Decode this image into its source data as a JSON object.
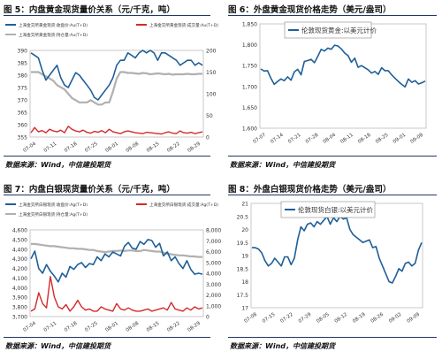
{
  "panels": [
    {
      "title": "图 5：内盘黄金现货量价关系（元/千克，吨）",
      "source": "数据来源：Wind，中信建投期货",
      "chart_data": {
        "type": "line",
        "xlabels": [
          "07-04",
          "07-11",
          "07-18",
          "07-25",
          "08-01",
          "08-08",
          "08-15",
          "08-22",
          "08-29"
        ],
        "y_ticks": [
          "390",
          "385",
          "380",
          "375",
          "370",
          "365",
          "360",
          "355"
        ],
        "y2_ticks": [
          "200",
          "150",
          "100",
          "50",
          "0"
        ],
        "ylim": [
          355,
          390
        ],
        "y2lim": [
          0,
          200
        ],
        "legend": [
          {
            "name": "上海金交所黄金现货:收盘价:Au(T+D)",
            "color": "#1f5f99"
          },
          {
            "name": "上海金交所黄金现货:成交量:Au(T+D)",
            "color": "#d42a2a"
          },
          {
            "name": "上海金交所黄金现货:持仓量:Au(T+D)",
            "color": "#b0b0b0"
          }
        ],
        "series": [
          {
            "name": "上海金交所黄金现货:收盘价:Au(T+D)",
            "axis": "left",
            "color": "#1f5f99",
            "width": 1.6,
            "values": [
              389,
              388,
              387,
              382,
              378,
              380,
              382,
              384,
              379,
              376,
              375,
              378,
              381,
              380,
              378,
              376,
              374,
              371,
              370,
              372,
              374,
              376,
              379,
              384,
              386,
              386,
              389,
              388,
              387,
              389,
              390,
              389,
              390,
              389,
              386,
              389,
              389,
              388,
              387,
              386,
              384,
              385,
              386,
              386,
              384,
              385,
              384
            ]
          },
          {
            "name": "上海金交所黄金现货:成交量:Au(T+D)",
            "axis": "right",
            "color": "#d42a2a",
            "width": 1.4,
            "values": [
              10,
              22,
              12,
              15,
              10,
              18,
              14,
              12,
              16,
              10,
              25,
              18,
              14,
              12,
              16,
              11,
              9,
              13,
              11,
              15,
              10,
              18,
              12,
              10,
              8,
              12,
              14,
              12,
              10,
              9,
              8,
              11,
              10,
              9,
              8,
              7,
              10,
              12,
              9,
              8,
              14,
              10,
              9,
              11,
              8,
              10,
              12
            ]
          },
          {
            "name": "上海金交所黄金现货:持仓量:Au(T+D)",
            "axis": "right",
            "color": "#b0b0b0",
            "width": 2.2,
            "values": [
              150,
              150,
              150,
              145,
              140,
              135,
              130,
              120,
              115,
              110,
              100,
              90,
              85,
              80,
              80,
              80,
              85,
              80,
              75,
              75,
              80,
              80,
              105,
              135,
              150,
              150,
              148,
              148,
              147,
              146,
              148,
              147,
              145,
              146,
              147,
              146,
              145,
              146,
              144,
              145,
              145,
              145,
              146,
              145,
              145,
              146,
              146
            ]
          }
        ]
      }
    },
    {
      "title": "图 6：外盘黄金现货价格走势（美元/盎司）",
      "source": "数据来源：Wind，中信建投期货",
      "chart_data": {
        "type": "line",
        "xlabels": [
          "07-07",
          "07-14",
          "07-21",
          "07-28",
          "08-04",
          "08-11",
          "08-18",
          "08-25",
          "09-01",
          "09-08"
        ],
        "y_ticks": [
          "1,850",
          "1,800",
          "1,750",
          "1,700",
          "1,650",
          "1,600"
        ],
        "ylim": [
          1600,
          1850
        ],
        "legend": [
          {
            "name": "伦敦现货黄金:以美元计价",
            "color": "#1f5f99"
          }
        ],
        "series": [
          {
            "name": "伦敦现货黄金:以美元计价",
            "axis": "left",
            "color": "#1f5f99",
            "width": 1.6,
            "values": [
              1742,
              1737,
              1738,
              1720,
              1705,
              1712,
              1718,
              1714,
              1723,
              1715,
              1735,
              1741,
              1728,
              1760,
              1762,
              1765,
              1757,
              1772,
              1789,
              1785,
              1792,
              1789,
              1799,
              1797,
              1790,
              1780,
              1774,
              1758,
              1768,
              1746,
              1750,
              1745,
              1740,
              1732,
              1736,
              1729,
              1745,
              1738,
              1738,
              1728,
              1720,
              1712,
              1705,
              1699,
              1718,
              1710,
              1714,
              1706,
              1709,
              1713
            ]
          }
        ]
      }
    },
    {
      "title": "图 7：内盘白银现货量价关系（元/千克，吨）",
      "source": "数据来源：Wind，中信建投期货",
      "chart_data": {
        "type": "line",
        "xlabels": [
          "07-04",
          "07-11",
          "07-18",
          "07-25",
          "08-01",
          "08-08",
          "08-15",
          "08-22",
          "08-29"
        ],
        "y_ticks": [
          "4,600",
          "4,500",
          "4,400",
          "4,300",
          "4,200",
          "4,100",
          "4,000",
          "3,900",
          "3,800",
          "3,700"
        ],
        "y2_ticks": [
          "8,000",
          "7,000",
          "6,000",
          "5,000",
          "4,000",
          "3,000",
          "2,000",
          "1,000",
          "0"
        ],
        "ylim": [
          3700,
          4600
        ],
        "y2lim": [
          0,
          8000
        ],
        "legend": [
          {
            "name": "上海金交所白银现货:收盘价:Ag(T+D)",
            "color": "#1f5f99"
          },
          {
            "name": "上海金交所白银现货:成交量:Ag(T+D)",
            "color": "#d42a2a"
          },
          {
            "name": "上海金交所白银现货:持仓量:Ag(T+D)",
            "color": "#b0b0b0"
          }
        ],
        "series": [
          {
            "name": "上海金交所白银现货:收盘价:Ag(T+D)",
            "axis": "left",
            "color": "#1f5f99",
            "width": 1.6,
            "values": [
              4300,
              4380,
              4200,
              4150,
              4240,
              4170,
              4120,
              4060,
              4150,
              4110,
              4220,
              4190,
              4240,
              4260,
              4210,
              4250,
              4240,
              4320,
              4280,
              4350,
              4320,
              4370,
              4350,
              4330,
              4430,
              4470,
              4410,
              4400,
              4480,
              4450,
              4500,
              4490,
              4420,
              4460,
              4330,
              4370,
              4280,
              4320,
              4250,
              4200,
              4280,
              4190,
              4140,
              4150,
              4140
            ]
          },
          {
            "name": "上海金交所白银现货:成交量:Ag(T+D)",
            "axis": "right",
            "color": "#d42a2a",
            "width": 1.4,
            "values": [
              500,
              700,
              2200,
              1200,
              800,
              3700,
              1800,
              900,
              700,
              1100,
              500,
              900,
              1500,
              900,
              600,
              700,
              500,
              500,
              900,
              700,
              600,
              500,
              1200,
              700,
              600,
              800,
              600,
              500,
              500,
              600,
              700,
              500,
              600,
              700,
              800,
              600,
              1300,
              700,
              600,
              500,
              800,
              600,
              900,
              700,
              800
            ]
          },
          {
            "name": "上海金交所白银现货:持仓量:Ag(T+D)",
            "axis": "right",
            "color": "#b0b0b0",
            "width": 2.2,
            "values": [
              6700,
              6700,
              6650,
              6600,
              6550,
              6500,
              6500,
              6450,
              6400,
              6350,
              6300,
              6300,
              6250,
              6250,
              6200,
              6150,
              6150,
              6050,
              6000,
              5950,
              6000,
              6050,
              6050,
              6100,
              6050,
              6100,
              6100,
              6050,
              6050,
              6150,
              6100,
              6050,
              6000,
              6000,
              5900,
              5800,
              5750,
              5700,
              5650,
              5650,
              5600,
              5550,
              5550,
              5500,
              5500
            ]
          }
        ]
      }
    },
    {
      "title": "图 8：外盘白银现货价格走势（美元/盎司）",
      "source": "数据来源：Wind，中信建投期货",
      "chart_data": {
        "type": "line",
        "xlabels": [
          "07-08",
          "07-15",
          "07-22",
          "07-29",
          "08-05",
          "08-12",
          "08-19",
          "08-26",
          "09-02",
          "09-09"
        ],
        "y_ticks": [
          "21",
          "20.5",
          "20",
          "19.5",
          "19",
          "18.5",
          "18",
          "17.5",
          "17"
        ],
        "ylim": [
          17,
          21
        ],
        "legend": [
          {
            "name": "伦敦现货白银:以美元计价",
            "color": "#1f5f99"
          }
        ],
        "series": [
          {
            "name": "伦敦现货白银:以美元计价",
            "axis": "left",
            "color": "#1f5f99",
            "width": 1.6,
            "values": [
              19.3,
              19.3,
              19.25,
              19.1,
              18.8,
              18.6,
              18.7,
              18.9,
              18.75,
              18.6,
              18.95,
              18.95,
              18.65,
              18.9,
              19.6,
              20.1,
              19.95,
              20.2,
              20.25,
              20.1,
              20.3,
              20.2,
              20.35,
              20.5,
              20.2,
              20.45,
              20.3,
              20.5,
              20.4,
              20.45,
              20.0,
              19.8,
              19.7,
              19.6,
              19.5,
              19.55,
              19.6,
              19.3,
              19.35,
              18.9,
              18.6,
              18.3,
              18.0,
              17.95,
              18.2,
              18.5,
              18.4,
              18.7,
              18.75,
              18.6,
              18.7,
              19.2,
              19.5
            ]
          }
        ]
      }
    }
  ]
}
